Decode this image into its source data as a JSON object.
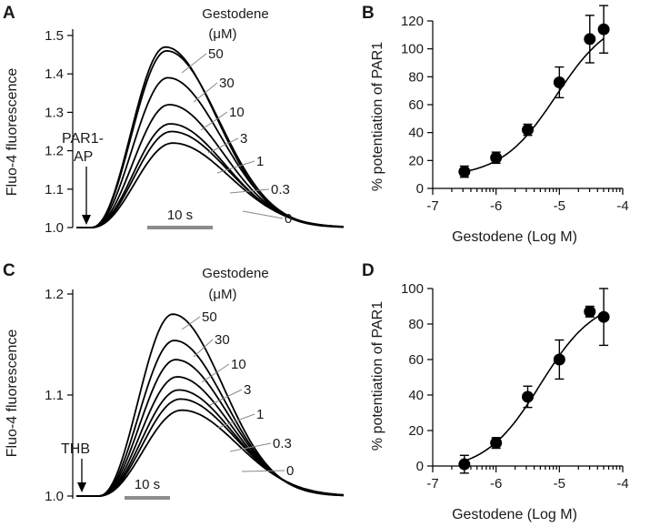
{
  "panels": {
    "A": {
      "label": "A"
    },
    "B": {
      "label": "B"
    },
    "C": {
      "label": "C"
    },
    "D": {
      "label": "D"
    }
  },
  "chart_data": [
    {
      "panel": "A",
      "type": "line",
      "ylabel": "Fluo-4 fluorescence",
      "yticks": [
        "1.0",
        "1.1",
        "1.2",
        "1.3",
        "1.4",
        "1.5"
      ],
      "ylim": [
        1.0,
        1.5
      ],
      "legend_title": [
        "Gestodene",
        "(μM)"
      ],
      "stimulus": [
        "PAR1-",
        "AP"
      ],
      "scale_bar": "10 s",
      "series": [
        {
          "name": "50",
          "peak": 1.47
        },
        {
          "name": "30",
          "peak": 1.46
        },
        {
          "name": "10",
          "peak": 1.39
        },
        {
          "name": "3",
          "peak": 1.32
        },
        {
          "name": "1",
          "peak": 1.27
        },
        {
          "name": "0.3",
          "peak": 1.25
        },
        {
          "name": "0",
          "peak": 1.22
        }
      ]
    },
    {
      "panel": "B",
      "type": "scatter",
      "xlabel": "Gestodene (Log M)",
      "ylabel": "% potentiation of PAR1",
      "xticks": [
        "-7",
        "-6",
        "-5",
        "-4"
      ],
      "xtick_values": [
        -7,
        -6,
        -5,
        -4
      ],
      "yticks": [
        "0",
        "20",
        "40",
        "60",
        "80",
        "100",
        "120"
      ],
      "ytick_values": [
        0,
        20,
        40,
        60,
        80,
        100,
        120
      ],
      "xlim": [
        -7,
        -4
      ],
      "ylim": [
        0,
        120
      ],
      "x": [
        -6.5,
        -6.0,
        -5.5,
        -5.0,
        -4.52,
        -4.3
      ],
      "y": [
        12,
        22,
        42,
        76,
        107,
        114
      ],
      "yerr": [
        4,
        4,
        4,
        11,
        17,
        17
      ],
      "fit": {
        "bottom": 8,
        "top": 125,
        "log_ec50": -5.05,
        "hill": 1.0
      }
    },
    {
      "panel": "C",
      "type": "line",
      "ylabel": "Fluo-4 fluorescence",
      "yticks": [
        "1.0",
        "1.1",
        "1.2"
      ],
      "ylim": [
        1.0,
        1.2
      ],
      "legend_title": [
        "Gestodene",
        "(μM)"
      ],
      "stimulus": [
        "THB"
      ],
      "scale_bar": "10 s",
      "series": [
        {
          "name": "50",
          "peak": 1.18
        },
        {
          "name": "30",
          "peak": 1.154
        },
        {
          "name": "10",
          "peak": 1.135
        },
        {
          "name": "3",
          "peak": 1.118
        },
        {
          "name": "1",
          "peak": 1.105
        },
        {
          "name": "0.3",
          "peak": 1.096
        },
        {
          "name": "0",
          "peak": 1.085
        }
      ]
    },
    {
      "panel": "D",
      "type": "scatter",
      "xlabel": "Gestodene (Log M)",
      "ylabel": "% potentiation of PAR1",
      "xticks": [
        "-7",
        "-6",
        "-5",
        "-4"
      ],
      "xtick_values": [
        -7,
        -6,
        -5,
        -4
      ],
      "yticks": [
        "0",
        "20",
        "40",
        "60",
        "80",
        "100"
      ],
      "ytick_values": [
        0,
        20,
        40,
        60,
        80,
        100
      ],
      "xlim": [
        -7,
        -4
      ],
      "ylim": [
        0,
        100
      ],
      "x": [
        -6.5,
        -6.0,
        -5.5,
        -5.0,
        -4.52,
        -4.3
      ],
      "y": [
        1,
        13,
        39,
        60,
        87,
        84
      ],
      "yerr": [
        5,
        3,
        6,
        11,
        3,
        16
      ],
      "fit": {
        "bottom": -3,
        "top": 95,
        "log_ec50": -5.3,
        "hill": 1.0
      }
    }
  ]
}
